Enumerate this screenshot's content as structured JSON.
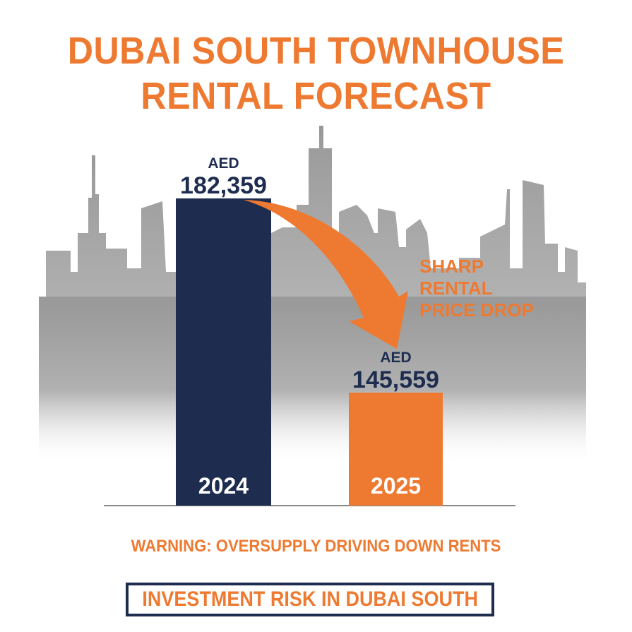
{
  "title_lines": [
    "DUBAI SOUTH TOWNHOUSE",
    "RENTAL FORECAST"
  ],
  "chart_data": {
    "type": "bar",
    "title": "DUBAI SOUTH TOWNHOUSE RENTAL FORECAST",
    "categories": [
      "2024",
      "2025"
    ],
    "values": [
      182359,
      145559
    ],
    "value_prefix": "AED",
    "value_labels": [
      "182,359",
      "145,559"
    ],
    "colors": [
      "#1e2d4f",
      "#ee7a32"
    ],
    "xlabel": "",
    "ylabel": "",
    "grid": false,
    "annotation": [
      "SHARP",
      "RENTAL",
      "PRICE DROP"
    ]
  },
  "warning": "WARNING: OVERSUPPLY DRIVING DOWN RENTS",
  "risk_label": "INVESTMENT RISK IN DUBAI SOUTH",
  "colors": {
    "accent": "#ee7a32",
    "navy": "#1e2d4f",
    "skyline": "#9a9a9a"
  }
}
